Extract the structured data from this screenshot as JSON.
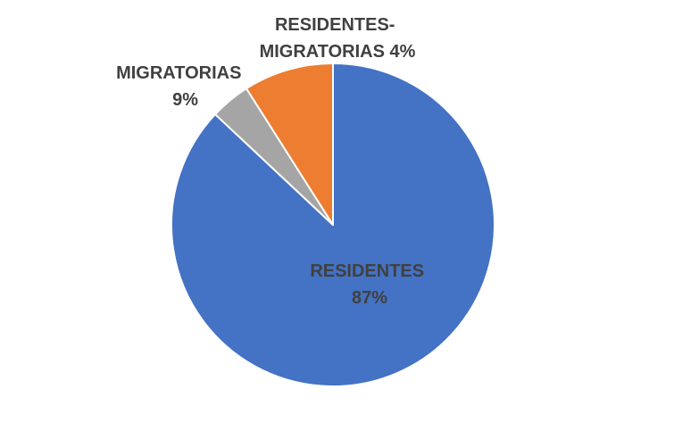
{
  "chart_data": {
    "type": "pie",
    "slices": [
      {
        "label": "RESIDENTES",
        "value": 87,
        "value_label": "87%",
        "color": "#4472C4"
      },
      {
        "label": "RESIDENTES-\nMIGRATORIAS",
        "value": 4,
        "value_label": "4%",
        "color": "#A5A5A5"
      },
      {
        "label": "MIGRATORIAS",
        "value": 9,
        "value_label": "9%",
        "color": "#ED7D31"
      }
    ]
  }
}
